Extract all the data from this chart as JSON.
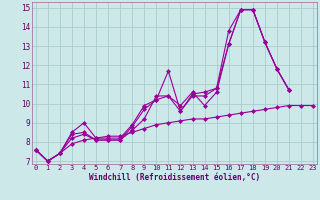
{
  "background_color": "#cce8e8",
  "grid_color": "#aacccc",
  "line_color": "#990099",
  "xlim": [
    -0.3,
    23.3
  ],
  "ylim": [
    6.85,
    15.3
  ],
  "xlabel": "Windchill (Refroidissement éolien,°C)",
  "yticks": [
    7,
    8,
    9,
    10,
    11,
    12,
    13,
    14,
    15
  ],
  "xticks": [
    0,
    1,
    2,
    3,
    4,
    5,
    6,
    7,
    8,
    9,
    10,
    11,
    12,
    13,
    14,
    15,
    16,
    17,
    18,
    19,
    20,
    21,
    22,
    23
  ],
  "series": [
    {
      "x": [
        0,
        1,
        2,
        3,
        4,
        5,
        6,
        7,
        8,
        9,
        10,
        11,
        12,
        13,
        14,
        15,
        16,
        17,
        18,
        19,
        20,
        21
      ],
      "y": [
        7.6,
        7.0,
        7.4,
        8.2,
        8.4,
        8.1,
        8.1,
        8.1,
        8.8,
        9.7,
        10.2,
        11.7,
        9.6,
        10.4,
        10.4,
        10.8,
        13.8,
        14.9,
        14.9,
        13.2,
        11.8,
        10.7
      ]
    },
    {
      "x": [
        0,
        1,
        2,
        3,
        4,
        5,
        6,
        7,
        8,
        9,
        10,
        11,
        12,
        13,
        14,
        15,
        16,
        17,
        18,
        19,
        20,
        21
      ],
      "y": [
        7.6,
        7.0,
        7.4,
        8.4,
        8.5,
        8.1,
        8.1,
        8.1,
        8.6,
        9.2,
        10.4,
        10.4,
        9.6,
        10.5,
        10.6,
        10.8,
        13.1,
        14.9,
        14.9,
        13.2,
        11.8,
        10.7
      ]
    },
    {
      "x": [
        0,
        1,
        2,
        3,
        4,
        5,
        6,
        7,
        8,
        9,
        10,
        11,
        12,
        13,
        14,
        15,
        16,
        17,
        18,
        19,
        20,
        21
      ],
      "y": [
        7.6,
        7.0,
        7.4,
        8.5,
        9.0,
        8.2,
        8.2,
        8.2,
        8.9,
        9.9,
        10.2,
        10.4,
        9.9,
        10.6,
        9.9,
        10.6,
        13.1,
        14.9,
        14.9,
        13.2,
        11.8,
        10.7
      ]
    },
    {
      "x": [
        0,
        1,
        2,
        3,
        4,
        5,
        6,
        7,
        8,
        9,
        10,
        11,
        12,
        13,
        14,
        15,
        16,
        17,
        18,
        19,
        20,
        21,
        22,
        23
      ],
      "y": [
        7.6,
        7.0,
        7.4,
        7.9,
        8.1,
        8.2,
        8.3,
        8.3,
        8.5,
        8.7,
        8.9,
        9.0,
        9.1,
        9.2,
        9.2,
        9.3,
        9.4,
        9.5,
        9.6,
        9.7,
        9.8,
        9.9,
        9.9,
        9.9
      ]
    }
  ]
}
